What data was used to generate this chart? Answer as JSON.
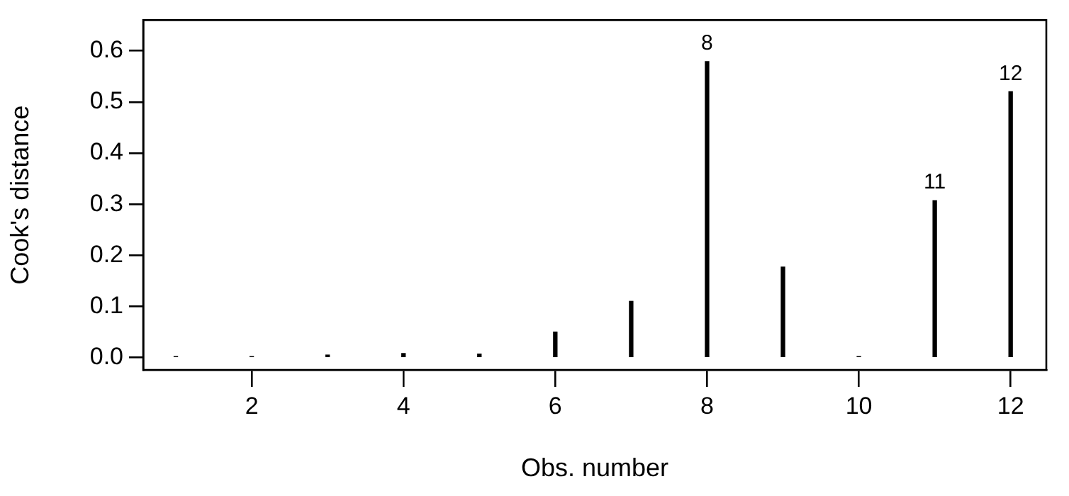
{
  "chart_data": {
    "type": "bar",
    "xlabel": "Obs. number",
    "ylabel": "Cook's distance",
    "x": [
      1,
      2,
      3,
      4,
      5,
      6,
      7,
      8,
      9,
      10,
      11,
      12
    ],
    "values": [
      0.002,
      0.002,
      0.005,
      0.008,
      0.007,
      0.05,
      0.11,
      0.579,
      0.177,
      0.002,
      0.307,
      0.52
    ],
    "color": "#000000",
    "xlim": [
      0.57,
      12.47
    ],
    "xticks": [
      2,
      4,
      6,
      8,
      10,
      12
    ],
    "ylim": [
      -0.024,
      0.66
    ],
    "yticks": [
      {
        "value": 0,
        "label": "0.0"
      },
      {
        "value": 0.1,
        "label": "0.1"
      },
      {
        "value": 0.2,
        "label": "0.2"
      },
      {
        "value": 0.3,
        "label": "0.3"
      },
      {
        "value": 0.4,
        "label": "0.4"
      },
      {
        "value": 0.5,
        "label": "0.5"
      },
      {
        "value": 0.6,
        "label": "0.6"
      }
    ],
    "grid": false,
    "legend": false,
    "annotations": [
      {
        "text": "8",
        "x": 8,
        "y": 0.579
      },
      {
        "text": "11",
        "x": 11,
        "y": 0.307
      },
      {
        "text": "12",
        "x": 12,
        "y": 0.52
      }
    ]
  }
}
